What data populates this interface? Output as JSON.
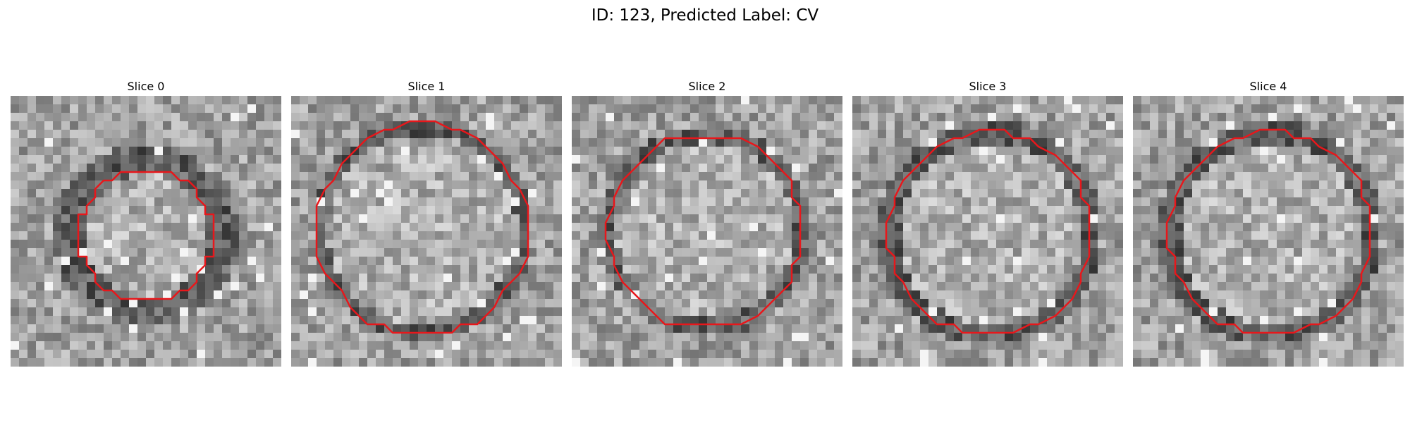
{
  "figure": {
    "title": "ID: 123, Predicted Label: CV"
  },
  "panels": [
    {
      "title": "Slice 0"
    },
    {
      "title": "Slice 1"
    },
    {
      "title": "Slice 2"
    },
    {
      "title": "Slice 3"
    },
    {
      "title": "Slice 4"
    }
  ],
  "colors": {
    "contour": "#e8171b",
    "background": "#ffffff"
  }
}
